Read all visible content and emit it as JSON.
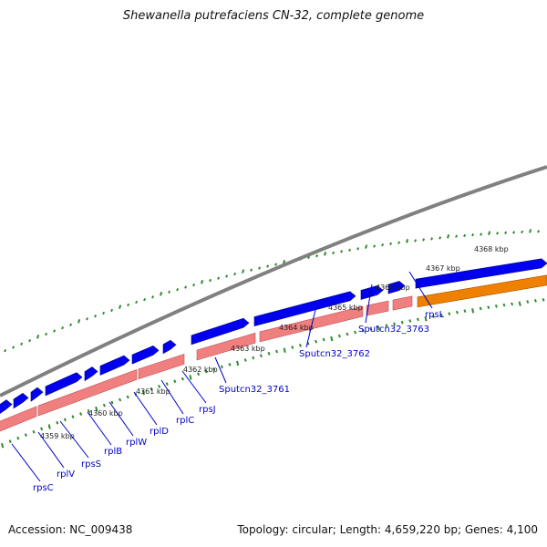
{
  "title": "Shewanella putrefaciens CN-32, complete genome",
  "footer": {
    "accession": "Accession: NC_009438",
    "summary": "Topology: circular; Length: 4,659,220 bp; Genes: 4,100"
  },
  "colors": {
    "forward_gene": "#0000ee",
    "reverse_gene": "#f08080",
    "special_gene": "#f08000",
    "backbone": "#808080",
    "ticks": "#2e8b2e",
    "gene_label": "#0000c8"
  },
  "kbp_labels": [
    "4359 kbp",
    "4360 kbp",
    "4361 kbp",
    "4362 kbp",
    "4363 kbp",
    "4364 kbp",
    "4365 kbp",
    "4366 kbp",
    "4367 kbp",
    "4368 kbp"
  ],
  "gene_labels": [
    "rpsC",
    "rplV",
    "rpsS",
    "rplB",
    "rplW",
    "rplD",
    "rplC",
    "rpsJ",
    "Sputcn32_3761",
    "Sputcn32_3762",
    "Sputcn32_3763",
    "rpsL"
  ]
}
